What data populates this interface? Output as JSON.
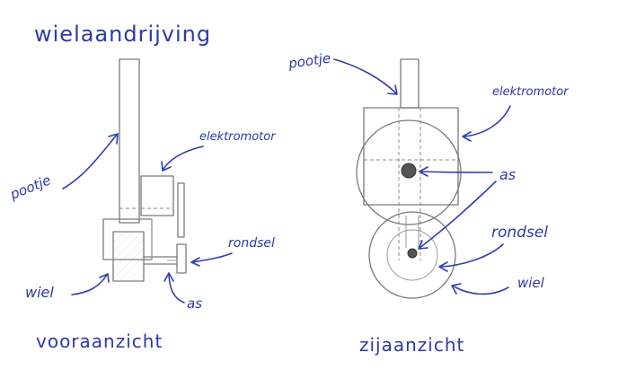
{
  "title": "wielaandrijving",
  "front_view": {
    "caption": "vooraanzicht",
    "labels": {
      "pootje": "pootje",
      "elektromotor": "elektromotor",
      "rondsel": "rondsel",
      "wiel": "wiel",
      "as": "as"
    }
  },
  "side_view": {
    "caption": "zijaanzicht",
    "labels": {
      "pootje": "pootje",
      "elektromotor": "elektromotor",
      "as": "as",
      "rondsel": "rondsel",
      "wiel": "wiel"
    }
  },
  "colors": {
    "ink": "#2f3fb0",
    "pencil": "#7a7a7a"
  }
}
